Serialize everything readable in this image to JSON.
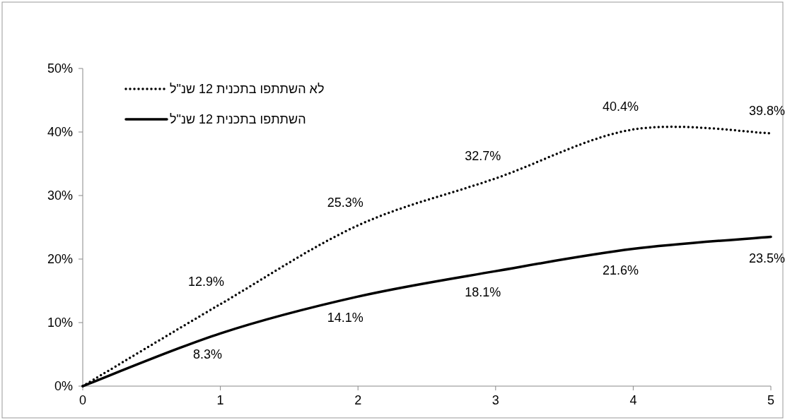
{
  "chart_data": {
    "type": "line",
    "x": [
      0,
      1,
      2,
      3,
      4,
      5
    ],
    "xlim": [
      0,
      5
    ],
    "xticks": [
      0,
      1,
      2,
      3,
      4,
      5
    ],
    "ylim": [
      0,
      50
    ],
    "yticks": [
      {
        "value": 0,
        "label": "0%"
      },
      {
        "value": 10,
        "label": "10%"
      },
      {
        "value": 20,
        "label": "20%"
      },
      {
        "value": 30,
        "label": "30%"
      },
      {
        "value": 40,
        "label": "40%"
      },
      {
        "value": 50,
        "label": "50%"
      }
    ],
    "series": [
      {
        "name": "לא השתתפו בתכנית 12 שנ\"ל",
        "color": "#000000",
        "line_style": "dotted",
        "values": [
          0,
          12.9,
          25.3,
          32.7,
          40.4,
          39.8
        ],
        "value_labels": [
          null,
          "12.9%",
          "25.3%",
          "32.7%",
          "40.4%",
          "39.8%"
        ]
      },
      {
        "name": "השתתפו בתכנית 12 שנ\"ל",
        "color": "#000000",
        "line_style": "solid",
        "values": [
          0,
          8.3,
          14.1,
          18.1,
          21.6,
          23.5
        ],
        "value_labels": [
          null,
          "8.3%",
          "14.1%",
          "18.1%",
          "21.6%",
          "23.5%"
        ]
      }
    ],
    "marker": "none",
    "legend": "top left"
  }
}
